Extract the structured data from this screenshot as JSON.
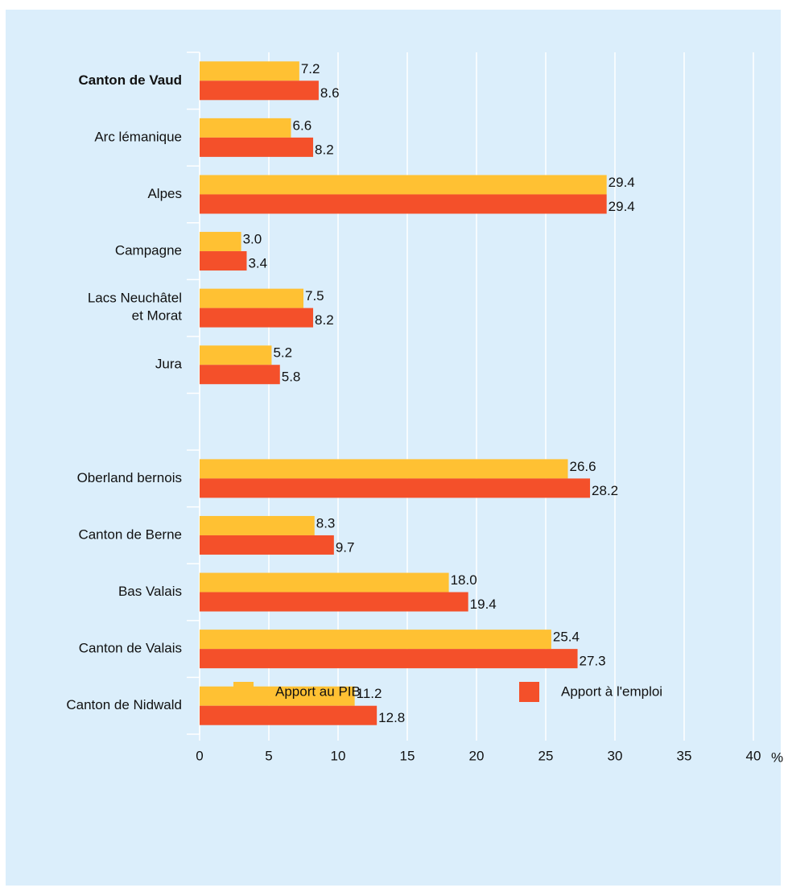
{
  "chart_data": {
    "type": "barh",
    "categories": [
      "Canton de Vaud",
      "Arc lémanique",
      "Alpes",
      "Campagne",
      "Lacs Neuchâtel\net Morat",
      "Jura",
      null,
      "Oberland bernois",
      "Canton de Berne",
      "Bas Valais",
      "Canton de Valais",
      "Canton de Nidwald"
    ],
    "bold_category_index": 0,
    "series": [
      {
        "name": "Apport au PIB",
        "color": "#ffc133",
        "values": [
          7.2,
          6.6,
          29.4,
          3.0,
          7.5,
          5.2,
          null,
          26.6,
          8.3,
          18.0,
          25.4,
          11.2
        ],
        "value_labels": [
          "7.2",
          "6.6",
          "29.4",
          "3.0",
          "7.5",
          "5.2",
          null,
          "26.6",
          "8.3",
          "18.0",
          "25.4",
          "11.2"
        ]
      },
      {
        "name": "Apport à l'emploi",
        "color": "#f4502a",
        "values": [
          8.6,
          8.2,
          29.4,
          3.4,
          8.2,
          5.8,
          null,
          28.2,
          9.7,
          19.4,
          27.3,
          12.8
        ],
        "value_labels": [
          "8.6",
          "8.2",
          "29.4",
          "3.4",
          "8.2",
          "5.8",
          null,
          "28.2",
          "9.7",
          "19.4",
          "27.3",
          "12.8"
        ]
      }
    ],
    "xlim": [
      0,
      40
    ],
    "xticks": [
      0,
      5,
      10,
      15,
      20,
      25,
      30,
      35,
      40
    ],
    "x_unit": "%",
    "grid": true
  }
}
